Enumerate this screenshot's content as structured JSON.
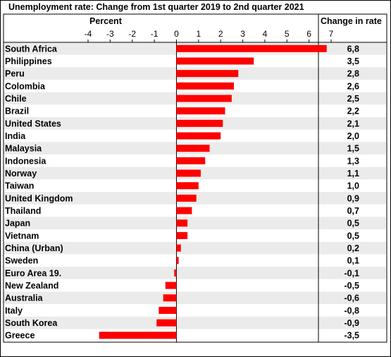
{
  "chart_data": {
    "type": "bar",
    "orientation": "horizontal",
    "title": "Unemployment rate: Change from 1st quarter 2019 to 2nd quarter 2021",
    "xlabel": "Percent",
    "value_column_header": "Change in rate",
    "xlim": [
      -4,
      7
    ],
    "ticks": [
      "-4",
      "-3",
      "-2",
      "-1",
      "0",
      "1",
      "2",
      "3",
      "4",
      "5",
      "6",
      "7"
    ],
    "bar_color": "#ff0000",
    "categories": [
      "South Africa",
      "Philippines",
      "Peru",
      "Colombia",
      "Chile",
      "Brazil",
      "United States",
      "India",
      "Malaysia",
      "Indonesia",
      "Norway",
      "Taiwan",
      "United Kingdom",
      "Thailand",
      "Japan",
      "Vietnam",
      "China (Urban)",
      "Sweden",
      "Euro Area 19.",
      "New Zealand",
      "Australia",
      "Italy",
      "South Korea",
      "Greece"
    ],
    "values": [
      6.8,
      3.5,
      2.8,
      2.6,
      2.5,
      2.2,
      2.1,
      2.0,
      1.5,
      1.3,
      1.1,
      1.0,
      0.9,
      0.7,
      0.5,
      0.5,
      0.2,
      0.1,
      -0.1,
      -0.5,
      -0.6,
      -0.8,
      -0.9,
      -3.5
    ],
    "value_labels": [
      "6,8",
      "3,5",
      "2,8",
      "2,6",
      "2,5",
      "2,2",
      "2,1",
      "2,0",
      "1,5",
      "1,3",
      "1,1",
      "1,0",
      "0,9",
      "0,7",
      "0,5",
      "0,5",
      "0,2",
      "0,1",
      "-0,1",
      "-0,5",
      "-0,6",
      "-0,8",
      "-0,9",
      "-3,5"
    ]
  }
}
